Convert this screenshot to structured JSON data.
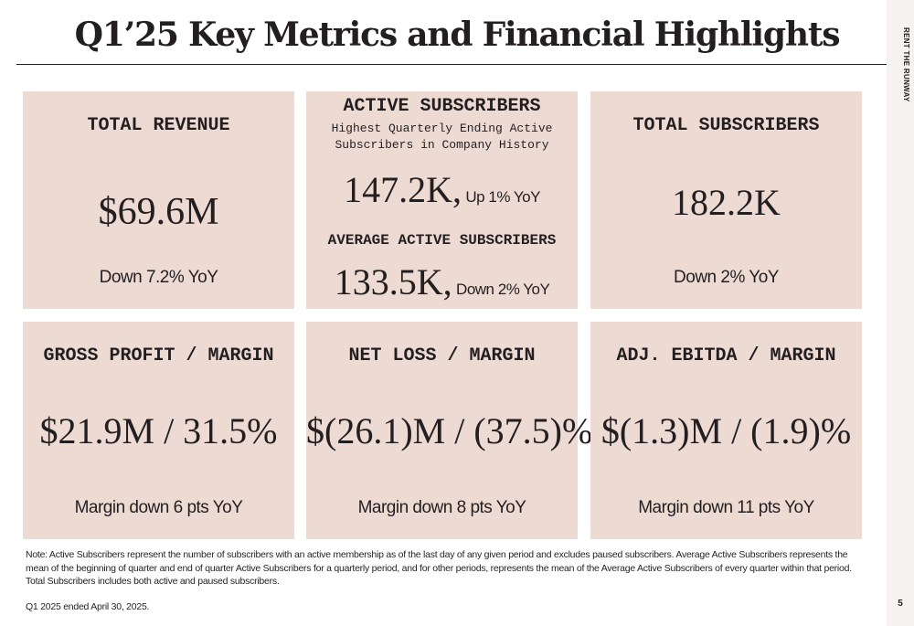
{
  "title": "Q1’25 Key Metrics and Financial Highlights",
  "brand": "RENT THE RUNWAY",
  "cards": {
    "total_revenue": {
      "label": "TOTAL REVENUE",
      "value": "$69.6M",
      "change": "Down 7.2% YoY"
    },
    "active_subscribers": {
      "label": "ACTIVE SUBSCRIBERS",
      "description": "Highest Quarterly Ending Active Subscribers in Company History",
      "value": "147.2K,",
      "change": "Up 1% YoY",
      "avg_label": "AVERAGE ACTIVE SUBSCRIBERS",
      "avg_value": "133.5K,",
      "avg_change": "Down 2% YoY"
    },
    "total_subscribers": {
      "label": "TOTAL SUBSCRIBERS",
      "value": "182.2K",
      "change": "Down 2% YoY"
    },
    "gross_profit": {
      "label": "GROSS PROFIT / MARGIN",
      "value": "$21.9M / 31.5%",
      "change": "Margin down 6 pts YoY"
    },
    "net_loss": {
      "label": "NET LOSS / MARGIN",
      "value": "$(26.1)M / (37.5)%",
      "change": "Margin down 8 pts YoY"
    },
    "adj_ebitda": {
      "label": "ADJ. EBITDA / MARGIN",
      "value": "$(1.3)M / (1.9)%",
      "change": "Margin down 11 pts YoY"
    }
  },
  "footnote": "Note: Active Subscribers represent the number of subscribers with an active membership as of the last day of any given period and excludes paused subscribers. Average Active Subscribers represents the mean of the beginning of quarter and end of quarter Active Subscribers for a quarterly period,  and for other periods, represents the mean of the Average Active Subscribers of every quarter within that period.  Total Subscribers includes both active and paused subscribers.",
  "period_note": "Q1 2025 ended April 30, 2025.",
  "page_number": "5",
  "colors": {
    "card_background": "#ecdad3",
    "text": "#231f20",
    "sidebar": "#f6f2ef"
  }
}
